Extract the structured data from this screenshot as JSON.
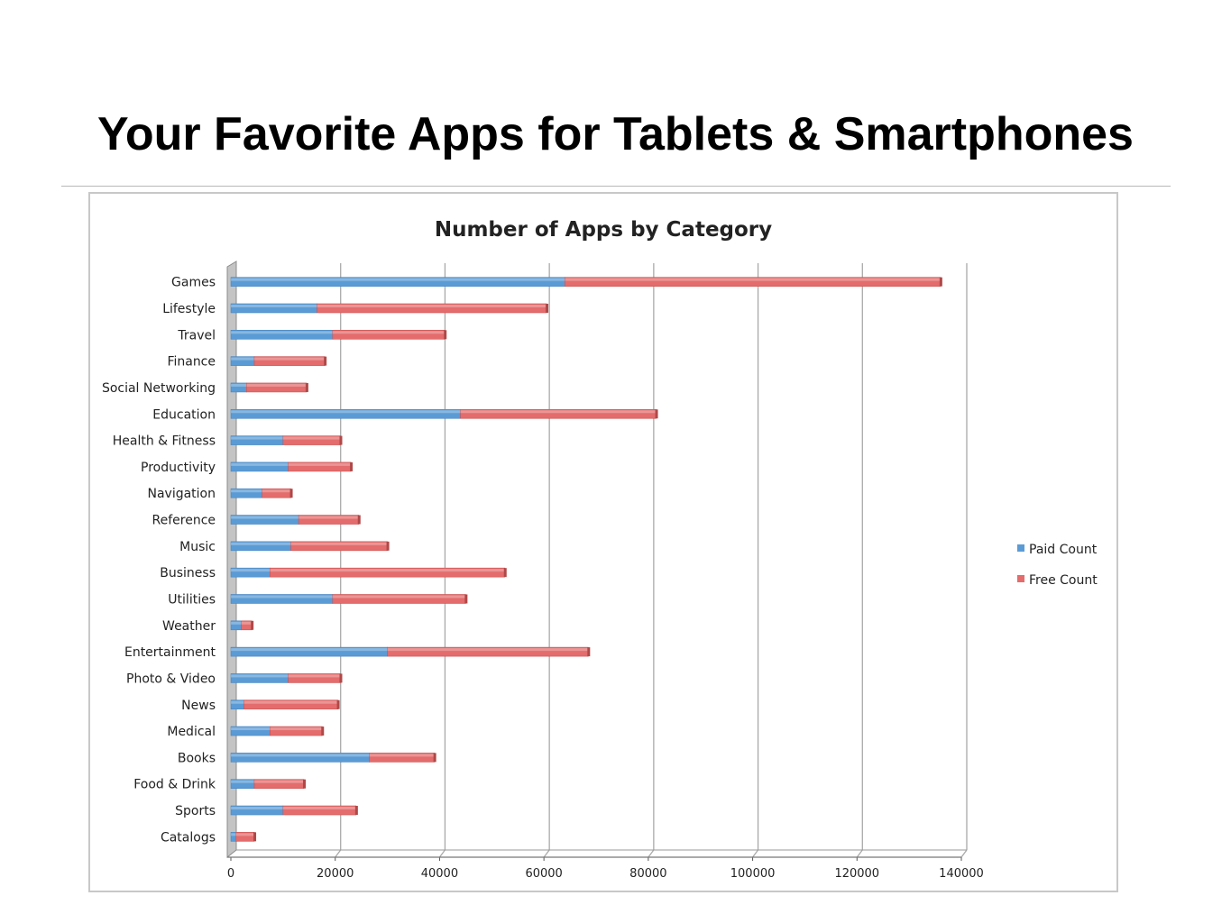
{
  "slide": {
    "title": "Your Favorite Apps for Tablets & Smartphones"
  },
  "chart_data": {
    "type": "bar",
    "orientation": "horizontal",
    "stacked": true,
    "title": "Number of Apps by Category",
    "xlabel": "",
    "ylabel": "",
    "xlim": [
      0,
      140000
    ],
    "x_ticks": [
      0,
      20000,
      40000,
      60000,
      80000,
      100000,
      120000,
      140000
    ],
    "x_tick_labels": [
      "0",
      "20000",
      "40000",
      "60000",
      "80000",
      "100000",
      "120000",
      "140000"
    ],
    "grid": true,
    "legend_position": "right",
    "categories": [
      "Games",
      "Lifestyle",
      "Travel",
      "Finance",
      "Social Networking",
      "Education",
      "Health & Fitness",
      "Productivity",
      "Navigation",
      "Reference",
      "Music",
      "Business",
      "Utilities",
      "Weather",
      "Entertainment",
      "Photo & Video",
      "News",
      "Medical",
      "Books",
      "Food & Drink",
      "Sports",
      "Catalogs"
    ],
    "category_labels": [
      "Games",
      "Lifestyle",
      "Travel",
      "Finance",
      "Social Networking",
      "Education",
      "Health & Fitness",
      "Productivity",
      "Navigation",
      "Reference",
      "Music",
      "Business",
      "Utilities",
      "Weather",
      "Entertainment",
      "Photo & Video",
      "News",
      "Medical",
      "Books",
      "Food & Drink",
      "Sports",
      "Catalogs"
    ],
    "series": [
      {
        "name": "Paid Count",
        "color": "#5b9bd5",
        "values": [
          64000,
          16500,
          19500,
          4500,
          3000,
          44000,
          10000,
          11000,
          6000,
          13000,
          11500,
          7500,
          19500,
          2000,
          30000,
          11000,
          2500,
          7500,
          26500,
          4500,
          10000,
          1000
        ]
      },
      {
        "name": "Free Count",
        "color": "#e46c6c",
        "values": [
          72000,
          44000,
          21500,
          13500,
          11500,
          37500,
          11000,
          12000,
          5500,
          11500,
          18500,
          45000,
          25500,
          2000,
          38500,
          10000,
          18000,
          10000,
          12500,
          9500,
          14000,
          3500
        ]
      }
    ]
  }
}
